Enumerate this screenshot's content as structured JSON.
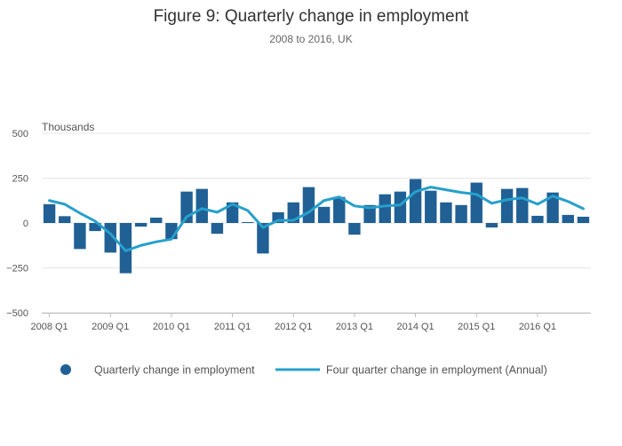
{
  "chart_data": {
    "type": "bar+line",
    "title": "Figure 9: Quarterly change in employment",
    "subtitle": "2008 to 2016, UK",
    "ylabel": "Thousands",
    "ylim": [
      -500,
      500
    ],
    "yticks": [
      500,
      250,
      0,
      -250,
      -500
    ],
    "ytick_labels": [
      "500",
      "250",
      "0",
      "−250",
      "−500"
    ],
    "categories": [
      "2008 Q1",
      "2008 Q2",
      "2008 Q3",
      "2008 Q4",
      "2009 Q1",
      "2009 Q2",
      "2009 Q3",
      "2009 Q4",
      "2010 Q1",
      "2010 Q2",
      "2010 Q3",
      "2010 Q4",
      "2011 Q1",
      "2011 Q2",
      "2011 Q3",
      "2011 Q4",
      "2012 Q1",
      "2012 Q2",
      "2012 Q3",
      "2012 Q4",
      "2013 Q1",
      "2013 Q2",
      "2013 Q3",
      "2013 Q4",
      "2014 Q1",
      "2014 Q2",
      "2014 Q3",
      "2014 Q4",
      "2015 Q1",
      "2015 Q2",
      "2015 Q3",
      "2015 Q4",
      "2016 Q1",
      "2016 Q2",
      "2016 Q3",
      "2016 Q4"
    ],
    "x_tick_labels": [
      "2008 Q1",
      "2009 Q1",
      "2010 Q1",
      "2011 Q1",
      "2012 Q1",
      "2013 Q1",
      "2014 Q1",
      "2015 Q1",
      "2016 Q1"
    ],
    "series": [
      {
        "name": "Quarterly change in employment",
        "type": "bar",
        "color": "#206095",
        "values": [
          105,
          38,
          -145,
          -45,
          -165,
          -280,
          -20,
          30,
          -90,
          175,
          190,
          -60,
          115,
          5,
          -170,
          60,
          115,
          200,
          90,
          145,
          -65,
          100,
          160,
          175,
          245,
          180,
          115,
          100,
          225,
          -25,
          190,
          195,
          40,
          170,
          45,
          35
        ]
      },
      {
        "name": "Four quarter change in employment (Annual)",
        "type": "line",
        "color": "#27a0cc",
        "values": [
          125,
          105,
          55,
          10,
          -60,
          -155,
          -125,
          -105,
          -90,
          35,
          80,
          60,
          105,
          70,
          -25,
          15,
          15,
          60,
          125,
          145,
          95,
          85,
          95,
          100,
          175,
          200,
          185,
          170,
          160,
          110,
          130,
          140,
          105,
          150,
          120,
          80
        ]
      }
    ],
    "legend_position": "bottom",
    "grid": true
  }
}
